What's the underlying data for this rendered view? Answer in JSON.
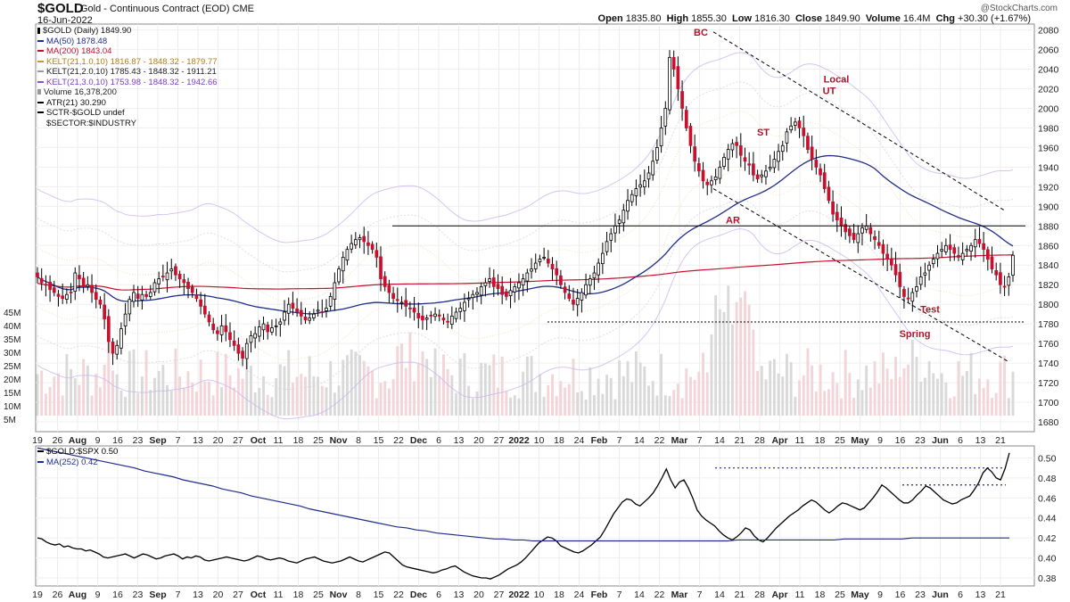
{
  "header": {
    "symbol": "$GOLD",
    "contract": "Gold - Continuous Contract (EOD)  CME",
    "date": "16-Jun-2022",
    "ohlc": {
      "open_label": "Open",
      "open": "1835.80",
      "high_label": "High",
      "high": "1855.30",
      "low_label": "Low",
      "low": "1816.30",
      "close_label": "Close",
      "close": "1849.90",
      "volume_label": "Volume",
      "volume": "16.4M",
      "chg_label": "Chg",
      "chg": "+30.30 (+1.67%)"
    },
    "brand": "@StockCharts.com"
  },
  "legend_main": [
    {
      "text": "$GOLD (Daily) 1849.90",
      "color": "#000000",
      "icon": "candle-icon"
    },
    {
      "text": "MA(50) 1878.48",
      "color": "#1f2d8a",
      "icon": "line-icon"
    },
    {
      "text": "MA(200) 1843.04",
      "color": "#c8102e",
      "icon": "line-icon"
    },
    {
      "text": "KELT(21,1.0,10) 1816.87 - 1848.32 - 1879.77",
      "color": "#c89a2a",
      "icon": "line-icon"
    },
    {
      "text": "KELT(21,2.0,10) 1785.43 - 1848.32 - 1911.21",
      "color": "#999999",
      "icon": "line-icon"
    },
    {
      "text": "KELT(21,3.0,10) 1753.98 - 1848.32 - 1942.66",
      "color": "#8a4fd8",
      "icon": "line-icon"
    },
    {
      "text": "Volume 16,378,200",
      "color": "#999999",
      "icon": "bar-icon"
    },
    {
      "text": "ATR(21) 30.290",
      "color": "#000000",
      "icon": "line-icon"
    },
    {
      "text": "SCTR-$GOLD undef",
      "color": "#000000",
      "icon": "line-icon"
    },
    {
      "text": "$SECTOR:$INDUSTRY",
      "color": "#000000",
      "icon": "none"
    }
  ],
  "legend_lower": [
    {
      "text": "$GOLD:$SPX 0.50",
      "color": "#000000"
    },
    {
      "text": "MA(252) 0.42",
      "color": "#1f2d8a"
    }
  ],
  "chart_data": [
    {
      "type": "candlestick",
      "title": "$GOLD (Daily)",
      "y_ticks": [
        1680,
        1700,
        1720,
        1740,
        1760,
        1780,
        1800,
        1820,
        1840,
        1860,
        1880,
        1900,
        1920,
        1940,
        1960,
        1980,
        2000,
        2020,
        2040,
        2060,
        2080
      ],
      "ylim": [
        1670,
        2086
      ],
      "volume_ticks": [
        "5M",
        "10M",
        "15M",
        "20M",
        "25M",
        "30M",
        "35M",
        "40M",
        "45M"
      ],
      "x_ticks": [
        "19",
        "26",
        "Aug",
        "9",
        "16",
        "23",
        "Sep",
        "7",
        "13",
        "20",
        "27",
        "Oct",
        "11",
        "18",
        "25",
        "Nov",
        "8",
        "15",
        "22",
        "Dec",
        "6",
        "13",
        "20",
        "27",
        "2022",
        "10",
        "18",
        "24",
        "Feb",
        "7",
        "14",
        "22",
        "Mar",
        "7",
        "14",
        "21",
        "28",
        "Apr",
        "11",
        "18",
        "25",
        "May",
        "9",
        "16",
        "23",
        "Jun",
        "6",
        "13",
        "21"
      ],
      "horizontal_lines": [
        {
          "value": 1880,
          "style": "solid"
        },
        {
          "value": 1782,
          "style": "dotted"
        }
      ],
      "channel_lines": [
        {
          "from": "BC 2076",
          "to": "1895",
          "style": "dashed"
        },
        {
          "from": "AR 1915",
          "to": "1742",
          "style": "dashed"
        }
      ],
      "annotations": [
        {
          "text": "BC",
          "at_value": 2078
        },
        {
          "text": "Local",
          "at_value": 2030
        },
        {
          "text": "UT",
          "at_value": 2018
        },
        {
          "text": "ST",
          "at_value": 1976
        },
        {
          "text": "AR",
          "at_value": 1886
        },
        {
          "text": "Test",
          "at_value": 1795
        },
        {
          "text": "Spring",
          "at_value": 1770
        }
      ],
      "close_series": [
        1828,
        1822,
        1820,
        1815,
        1812,
        1808,
        1806,
        1810,
        1812,
        1832,
        1826,
        1818,
        1820,
        1812,
        1805,
        1800,
        1785,
        1762,
        1750,
        1758,
        1775,
        1790,
        1805,
        1812,
        1806,
        1810,
        1808,
        1812,
        1822,
        1826,
        1828,
        1832,
        1836,
        1830,
        1826,
        1822,
        1816,
        1812,
        1806,
        1798,
        1790,
        1782,
        1774,
        1770,
        1778,
        1772,
        1764,
        1758,
        1750,
        1745,
        1760,
        1768,
        1770,
        1777,
        1780,
        1772,
        1776,
        1778,
        1782,
        1792,
        1800,
        1796,
        1792,
        1788,
        1784,
        1786,
        1790,
        1794,
        1792,
        1796,
        1808,
        1822,
        1836,
        1848,
        1856,
        1862,
        1866,
        1868,
        1864,
        1860,
        1856,
        1848,
        1826,
        1818,
        1812,
        1806,
        1804,
        1802,
        1798,
        1796,
        1792,
        1786,
        1784,
        1786,
        1788,
        1790,
        1788,
        1784,
        1782,
        1788,
        1792,
        1796,
        1802,
        1806,
        1810,
        1812,
        1818,
        1822,
        1826,
        1818,
        1816,
        1810,
        1808,
        1814,
        1818,
        1822,
        1826,
        1832,
        1836,
        1842,
        1846,
        1848,
        1842,
        1836,
        1830,
        1820,
        1812,
        1806,
        1800,
        1806,
        1812,
        1820,
        1826,
        1832,
        1842,
        1852,
        1864,
        1872,
        1880,
        1886,
        1896,
        1906,
        1912,
        1918,
        1922,
        1926,
        1934,
        1946,
        1960,
        1980,
        2000,
        2052,
        2040,
        2020,
        2000,
        1980,
        1962,
        1946,
        1936,
        1926,
        1922,
        1926,
        1930,
        1940,
        1950,
        1958,
        1964,
        1962,
        1952,
        1946,
        1942,
        1932,
        1928,
        1932,
        1936,
        1940,
        1948,
        1956,
        1962,
        1976,
        1982,
        1986,
        1980,
        1972,
        1958,
        1948,
        1940,
        1932,
        1918,
        1906,
        1892,
        1886,
        1880,
        1874,
        1870,
        1866,
        1872,
        1878,
        1880,
        1872,
        1866,
        1860,
        1852,
        1846,
        1840,
        1830,
        1818,
        1808,
        1806,
        1812,
        1818,
        1828,
        1832,
        1840,
        1846,
        1852,
        1856,
        1860,
        1856,
        1852,
        1848,
        1852,
        1856,
        1860,
        1866,
        1862,
        1856,
        1846,
        1836,
        1830,
        1820,
        1818,
        1828,
        1850
      ]
    },
    {
      "type": "line",
      "title": "$GOLD:$SPX",
      "y_ticks": [
        0.38,
        0.4,
        0.42,
        0.44,
        0.46,
        0.48,
        0.5
      ],
      "ylim": [
        0.372,
        0.512
      ],
      "x_ticks": [
        "19",
        "26",
        "Aug",
        "9",
        "16",
        "23",
        "Sep",
        "7",
        "13",
        "20",
        "27",
        "Oct",
        "11",
        "18",
        "25",
        "Nov",
        "8",
        "15",
        "22",
        "Dec",
        "6",
        "13",
        "20",
        "27",
        "2022",
        "10",
        "18",
        "24",
        "Feb",
        "7",
        "14",
        "22",
        "Mar",
        "7",
        "14",
        "21",
        "28",
        "Apr",
        "11",
        "18",
        "25",
        "May",
        "9",
        "16",
        "23",
        "Jun",
        "6",
        "13",
        "21"
      ],
      "horizontal_lines": [
        {
          "value": 0.49,
          "style": "dotted"
        },
        {
          "value": 0.473,
          "style": "dotted"
        }
      ],
      "series": [
        {
          "name": "$GOLD:$SPX",
          "values": [
            0.42,
            0.419,
            0.416,
            0.414,
            0.413,
            0.414,
            0.411,
            0.412,
            0.41,
            0.409,
            0.409,
            0.407,
            0.408,
            0.406,
            0.404,
            0.401,
            0.4,
            0.401,
            0.402,
            0.403,
            0.404,
            0.402,
            0.4,
            0.402,
            0.404,
            0.403,
            0.401,
            0.399,
            0.4,
            0.402,
            0.403,
            0.404,
            0.402,
            0.399,
            0.401,
            0.4,
            0.402,
            0.401,
            0.398,
            0.397,
            0.398,
            0.399,
            0.4,
            0.401,
            0.4,
            0.399,
            0.398,
            0.397,
            0.398,
            0.4,
            0.402,
            0.401,
            0.399,
            0.398,
            0.399,
            0.4,
            0.399,
            0.397,
            0.396,
            0.395,
            0.397,
            0.399,
            0.4,
            0.401,
            0.399,
            0.397,
            0.396,
            0.395,
            0.396,
            0.397,
            0.399,
            0.401,
            0.399,
            0.397,
            0.396,
            0.398,
            0.4,
            0.402,
            0.404,
            0.406,
            0.405,
            0.401,
            0.397,
            0.393,
            0.391,
            0.39,
            0.389,
            0.388,
            0.387,
            0.386,
            0.385,
            0.386,
            0.388,
            0.389,
            0.391,
            0.392,
            0.389,
            0.386,
            0.384,
            0.382,
            0.381,
            0.38,
            0.38,
            0.379,
            0.381,
            0.383,
            0.386,
            0.389,
            0.391,
            0.393,
            0.396,
            0.4,
            0.405,
            0.41,
            0.415,
            0.418,
            0.421,
            0.42,
            0.417,
            0.412,
            0.41,
            0.408,
            0.406,
            0.405,
            0.407,
            0.41,
            0.413,
            0.417,
            0.421,
            0.428,
            0.436,
            0.444,
            0.45,
            0.456,
            0.459,
            0.458,
            0.454,
            0.452,
            0.456,
            0.46,
            0.465,
            0.472,
            0.48,
            0.489,
            0.478,
            0.47,
            0.476,
            0.478,
            0.47,
            0.46,
            0.448,
            0.442,
            0.438,
            0.435,
            0.432,
            0.427,
            0.423,
            0.42,
            0.418,
            0.421,
            0.425,
            0.43,
            0.428,
            0.422,
            0.418,
            0.416,
            0.42,
            0.425,
            0.43,
            0.434,
            0.438,
            0.442,
            0.445,
            0.448,
            0.452,
            0.455,
            0.458,
            0.456,
            0.452,
            0.448,
            0.445,
            0.448,
            0.452,
            0.455,
            0.454,
            0.452,
            0.45,
            0.448,
            0.45,
            0.455,
            0.46,
            0.466,
            0.473,
            0.47,
            0.466,
            0.462,
            0.458,
            0.455,
            0.455,
            0.458,
            0.463,
            0.467,
            0.472,
            0.47,
            0.466,
            0.462,
            0.458,
            0.456,
            0.454,
            0.455,
            0.458,
            0.46,
            0.462,
            0.468,
            0.475,
            0.485,
            0.49,
            0.486,
            0.48,
            0.478,
            0.489,
            0.505
          ]
        },
        {
          "name": "MA(252)",
          "values": [
            0.51,
            0.508,
            0.506,
            0.504,
            0.502,
            0.5,
            0.498,
            0.496,
            0.494,
            0.492,
            0.49,
            0.487,
            0.485,
            0.483,
            0.481,
            0.478,
            0.476,
            0.474,
            0.472,
            0.469,
            0.467,
            0.465,
            0.462,
            0.46,
            0.458,
            0.456,
            0.454,
            0.452,
            0.449,
            0.447,
            0.445,
            0.443,
            0.441,
            0.439,
            0.437,
            0.435,
            0.433,
            0.431,
            0.43,
            0.428,
            0.427,
            0.425,
            0.424,
            0.423,
            0.422,
            0.421,
            0.42,
            0.419,
            0.419,
            0.418,
            0.418,
            0.417,
            0.417,
            0.417,
            0.417,
            0.417,
            0.417,
            0.417,
            0.417,
            0.417,
            0.417,
            0.417,
            0.417,
            0.417,
            0.417,
            0.417,
            0.417,
            0.417,
            0.417,
            0.417,
            0.417,
            0.417,
            0.418,
            0.418,
            0.418,
            0.418,
            0.418,
            0.418,
            0.418,
            0.418,
            0.418,
            0.418,
            0.418,
            0.419,
            0.419,
            0.419,
            0.419,
            0.419,
            0.419,
            0.419,
            0.42,
            0.42,
            0.42,
            0.42,
            0.42,
            0.42,
            0.42,
            0.42,
            0.42,
            0.42,
            0.42
          ]
        }
      ]
    }
  ]
}
